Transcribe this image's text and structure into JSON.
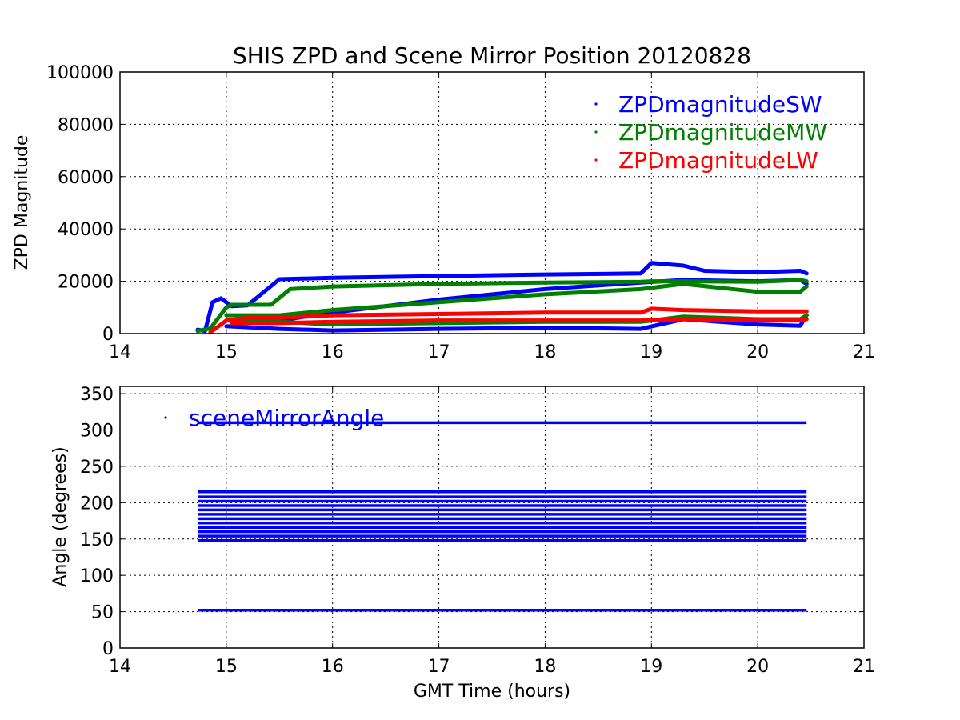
{
  "figure": {
    "title": "SHIS ZPD and Scene Mirror Position 20120828"
  },
  "chart_data": [
    {
      "type": "scatter",
      "title": "SHIS ZPD and Scene Mirror Position 20120828",
      "xlabel": "",
      "ylabel": "ZPD Magnitude",
      "xlim": [
        14,
        21
      ],
      "ylim": [
        0,
        100000
      ],
      "x_ticks": [
        "14",
        "15",
        "16",
        "17",
        "18",
        "19",
        "20",
        "21"
      ],
      "y_ticks": [
        "0",
        "20000",
        "40000",
        "60000",
        "80000",
        "100000"
      ],
      "grid": true,
      "legend": "top-right",
      "series": [
        {
          "name": "ZPDmagnitudeSW",
          "color": "#0000ff",
          "bands": [
            {
              "x": [
                14.73,
                14.8,
                14.87,
                14.95,
                15.05,
                15.2,
                15.5,
                16.0,
                17.0,
                18.0,
                18.9,
                19.0,
                19.3,
                19.5,
                20.0,
                20.4,
                20.46
              ],
              "y": [
                1500,
                1000,
                12000,
                13500,
                10500,
                10800,
                20800,
                21300,
                22000,
                22600,
                23000,
                27000,
                26000,
                24000,
                23500,
                24000,
                23000
              ]
            },
            {
              "x": [
                15.05,
                15.5,
                16.0,
                17.0,
                18.0,
                18.9,
                19.3,
                20.0,
                20.4,
                20.46
              ],
              "y": [
                4000,
                5000,
                8000,
                13000,
                17000,
                19500,
                20500,
                20000,
                20500,
                19000
              ]
            },
            {
              "x": [
                15.0,
                15.5,
                16.0,
                17.0,
                18.0,
                18.9,
                19.3,
                20.0,
                20.4,
                20.46
              ],
              "y": [
                2800,
                1800,
                1200,
                1800,
                2200,
                1800,
                5500,
                3500,
                3000,
                7000
              ]
            }
          ]
        },
        {
          "name": "ZPDmagnitudeMW",
          "color": "#008000",
          "bands": [
            {
              "x": [
                14.73,
                14.85,
                15.0,
                15.05,
                15.2,
                15.42,
                15.6,
                16.0,
                17.0,
                18.0,
                18.9,
                19.0,
                19.3,
                20.0,
                20.4,
                20.46
              ],
              "y": [
                1000,
                2000,
                10000,
                11000,
                11000,
                11000,
                17000,
                18000,
                19000,
                19500,
                19800,
                20000,
                20000,
                19800,
                20500,
                20000
              ]
            },
            {
              "x": [
                15.0,
                15.5,
                16.0,
                17.0,
                18.0,
                18.9,
                19.3,
                20.0,
                20.4,
                20.46
              ],
              "y": [
                7000,
                7000,
                9000,
                12000,
                15000,
                17000,
                19000,
                16000,
                16000,
                18000
              ]
            },
            {
              "x": [
                15.0,
                15.5,
                16.0,
                17.0,
                18.0,
                18.9,
                19.3,
                20.0,
                20.4,
                20.46
              ],
              "y": [
                5000,
                4500,
                3500,
                4000,
                4500,
                4500,
                6500,
                5500,
                5500,
                7000
              ]
            }
          ]
        },
        {
          "name": "ZPDmagnitudeLW",
          "color": "#ff0000",
          "bands": [
            {
              "x": [
                14.85,
                15.0,
                15.2,
                15.5,
                16.0,
                17.0,
                18.0,
                18.9,
                19.0,
                19.3,
                20.0,
                20.4,
                20.46
              ],
              "y": [
                500,
                5000,
                6000,
                6000,
                7000,
                7500,
                8000,
                8000,
                9500,
                9000,
                8500,
                8500,
                8500
              ]
            },
            {
              "x": [
                15.05,
                15.5,
                16.0,
                17.0,
                18.0,
                18.9,
                19.3,
                20.0,
                20.4,
                20.46
              ],
              "y": [
                4000,
                4000,
                4500,
                5000,
                5000,
                5000,
                5500,
                5000,
                5000,
                5500
              ]
            }
          ]
        }
      ]
    },
    {
      "type": "scatter",
      "title": "",
      "xlabel": "GMT Time (hours)",
      "ylabel": "Angle (degrees)",
      "xlim": [
        14,
        21
      ],
      "ylim": [
        0,
        360
      ],
      "x_ticks": [
        "14",
        "15",
        "16",
        "17",
        "18",
        "19",
        "20",
        "21"
      ],
      "y_ticks": [
        "0",
        "50",
        "100",
        "150",
        "200",
        "250",
        "300",
        "350"
      ],
      "grid": true,
      "legend": "top-left",
      "series": [
        {
          "name": "sceneMirrorAngle",
          "color": "#0000ff",
          "x_range": [
            14.73,
            20.46
          ],
          "levels": [
            52,
            148,
            154,
            160,
            166,
            172,
            178,
            184,
            190,
            196,
            202,
            208,
            215,
            310
          ]
        }
      ]
    }
  ]
}
